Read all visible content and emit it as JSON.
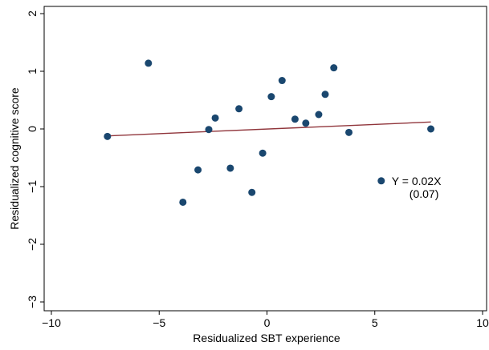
{
  "chart_data": {
    "type": "scatter",
    "xlabel": "Residualized SBT experience",
    "ylabel": "Residualized cognitive score",
    "xlim": [
      -10,
      10
    ],
    "ylim": [
      -3,
      2
    ],
    "xticks": [
      -10,
      -5,
      0,
      5,
      10
    ],
    "yticks": [
      -3,
      -2,
      -1,
      0,
      1,
      2
    ],
    "xtick_labels": [
      "−10",
      "−5",
      "0",
      "5",
      "10"
    ],
    "ytick_labels": [
      "−3",
      "−2",
      "−1",
      "0",
      "1",
      "2"
    ],
    "grid": false,
    "points": [
      {
        "x": -7.4,
        "y": -0.13
      },
      {
        "x": -5.5,
        "y": 1.14
      },
      {
        "x": -3.9,
        "y": -1.27
      },
      {
        "x": -3.2,
        "y": -0.71
      },
      {
        "x": -2.7,
        "y": -0.01
      },
      {
        "x": -2.4,
        "y": 0.19
      },
      {
        "x": -1.7,
        "y": -0.68
      },
      {
        "x": -1.3,
        "y": 0.35
      },
      {
        "x": -0.7,
        "y": -1.1
      },
      {
        "x": -0.2,
        "y": -0.42
      },
      {
        "x": 0.2,
        "y": 0.56
      },
      {
        "x": 0.7,
        "y": 0.84
      },
      {
        "x": 1.3,
        "y": 0.17
      },
      {
        "x": 1.8,
        "y": 0.1
      },
      {
        "x": 2.4,
        "y": 0.25
      },
      {
        "x": 2.7,
        "y": 0.6
      },
      {
        "x": 3.1,
        "y": 1.06
      },
      {
        "x": 3.8,
        "y": -0.06
      },
      {
        "x": 7.6,
        "y": 0.0
      }
    ],
    "fit_line": {
      "x": [
        -7.4,
        7.6
      ],
      "y": [
        -0.12,
        0.12
      ]
    },
    "legend": {
      "marker_point": {
        "x": 5.3,
        "y": -0.9
      },
      "equation": "Y = 0.02X",
      "std_error": "(0.07)"
    },
    "colors": {
      "marker": "#1a476f",
      "fit_line": "#90353b",
      "axis": "#000000"
    }
  }
}
